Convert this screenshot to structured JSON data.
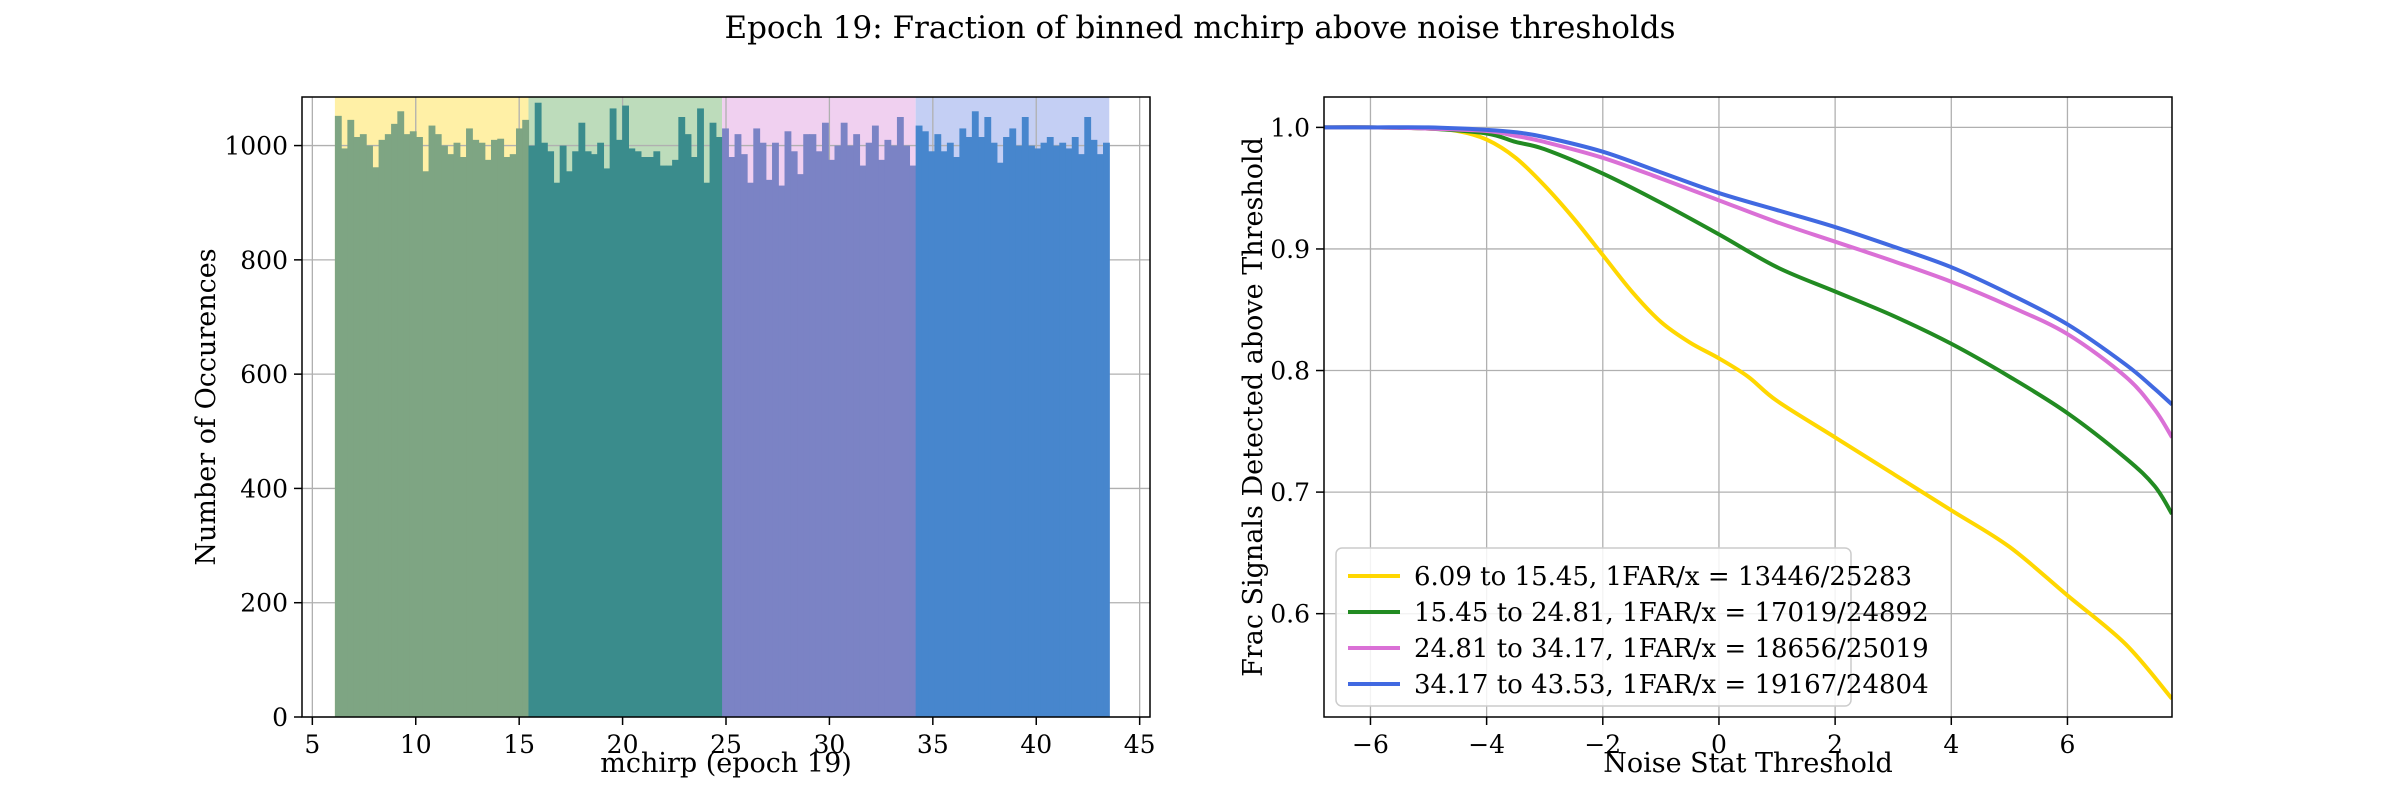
{
  "figure": {
    "title": "Epoch 19: Fraction of binned mchirp above noise thresholds"
  },
  "chart_data": [
    {
      "type": "bar",
      "name": "histogram",
      "xlabel": "mchirp (epoch 19)",
      "ylabel": "Number of Occurences",
      "xlim": [
        4.5,
        45.5
      ],
      "ylim": [
        0,
        1085
      ],
      "xticks": [
        5,
        10,
        15,
        20,
        25,
        30,
        35,
        40,
        45
      ],
      "yticks": [
        0,
        200,
        400,
        600,
        800,
        1000
      ],
      "grid": true,
      "bin_range": [
        6.09,
        43.53
      ],
      "bin_values": [
        1052,
        995,
        1045,
        1015,
        1020,
        1000,
        962,
        1010,
        1020,
        1038,
        1060,
        1020,
        1025,
        1015,
        955,
        1035,
        1020,
        1000,
        985,
        1005,
        980,
        1030,
        1010,
        1005,
        975,
        1010,
        1012,
        980,
        985,
        1030,
        1045,
        1000,
        1075,
        1005,
        990,
        935,
        1000,
        955,
        990,
        1040,
        990,
        985,
        1005,
        960,
        1065,
        1010,
        1070,
        995,
        990,
        980,
        980,
        990,
        965,
        965,
        975,
        1050,
        1020,
        980,
        1065,
        935,
        1040,
        1015,
        1030,
        980,
        1020,
        985,
        935,
        1030,
        1005,
        940,
        1005,
        930,
        1025,
        990,
        950,
        1020,
        1020,
        990,
        1040,
        975,
        1000,
        1040,
        1000,
        1020,
        965,
        1005,
        1035,
        975,
        1010,
        1000,
        1050,
        1000,
        965,
        1035,
        1025,
        990,
        1020,
        990,
        1005,
        980,
        1030,
        1015,
        1060,
        1015,
        1050,
        1005,
        970,
        1015,
        1030,
        1000,
        1050,
        1000,
        995,
        1005,
        1015,
        1000,
        1005,
        995,
        1015,
        985,
        1050,
        1010,
        985,
        1005
      ],
      "bands": [
        {
          "range": [
            6.09,
            15.45
          ],
          "shade": "#fff0a6",
          "bar_color": "#7ea583"
        },
        {
          "range": [
            15.45,
            24.81
          ],
          "shade": "#bddcbb",
          "bar_color": "#3a8c8c"
        },
        {
          "range": [
            24.81,
            34.17
          ],
          "shade": "#f0d0f0",
          "bar_color": "#7b83c5"
        },
        {
          "range": [
            34.17,
            43.53
          ],
          "shade": "#c4cff4",
          "bar_color": "#4786cd"
        }
      ]
    },
    {
      "type": "line",
      "name": "threshold curves",
      "xlabel": "Noise Stat Threshold",
      "ylabel": "Frac Signals Detected above Threshold",
      "xlim": [
        -6.8,
        7.8
      ],
      "ylim": [
        0.515,
        1.025
      ],
      "xticks": [
        -6,
        -4,
        -2,
        0,
        2,
        4,
        6
      ],
      "xtick_labels": [
        "−6",
        "−4",
        "−2",
        "0",
        "2",
        "4",
        "6"
      ],
      "yticks": [
        0.6,
        0.7,
        0.8,
        0.9,
        1.0
      ],
      "ytick_labels": [
        "0.6",
        "0.7",
        "0.8",
        "0.9",
        "1.0"
      ],
      "grid": true,
      "legend_position": "lower-left",
      "series": [
        {
          "name": "6.09 to 15.45, 1FAR/x = 13446/25283",
          "color": "#ffd700",
          "x": [
            -6.8,
            -6,
            -5,
            -4.5,
            -4,
            -3.5,
            -3,
            -2.5,
            -2,
            -1.5,
            -1,
            -0.5,
            0,
            0.5,
            1,
            2,
            3,
            4,
            5,
            6,
            7,
            7.8
          ],
          "y": [
            1.0,
            1.0,
            0.999,
            0.997,
            0.99,
            0.975,
            0.952,
            0.925,
            0.895,
            0.865,
            0.84,
            0.823,
            0.81,
            0.795,
            0.775,
            0.745,
            0.715,
            0.685,
            0.655,
            0.615,
            0.575,
            0.53
          ]
        },
        {
          "name": "15.45 to 24.81, 1FAR/x = 17019/24892",
          "color": "#228b22",
          "x": [
            -6.8,
            -6,
            -5,
            -4,
            -3.5,
            -3,
            -2,
            -1,
            0,
            1,
            2,
            3,
            4,
            5,
            6,
            7,
            7.5,
            7.8
          ],
          "y": [
            1.0,
            1.0,
            0.999,
            0.995,
            0.988,
            0.982,
            0.962,
            0.938,
            0.912,
            0.885,
            0.865,
            0.845,
            0.822,
            0.795,
            0.765,
            0.728,
            0.705,
            0.682
          ]
        },
        {
          "name": "24.81 to 34.17, 1FAR/x = 18656/25019",
          "color": "#da70d6",
          "x": [
            -6.8,
            -6,
            -5,
            -4,
            -3.5,
            -3,
            -2,
            -1,
            0,
            1,
            2,
            3,
            4,
            5,
            6,
            7,
            7.5,
            7.8
          ],
          "y": [
            1.0,
            1.0,
            0.999,
            0.997,
            0.993,
            0.988,
            0.975,
            0.958,
            0.94,
            0.922,
            0.906,
            0.89,
            0.873,
            0.853,
            0.83,
            0.795,
            0.768,
            0.745
          ]
        },
        {
          "name": "34.17 to 43.53, 1FAR/x = 19167/24804",
          "color": "#4169e1",
          "x": [
            -6.8,
            -6,
            -5,
            -4,
            -3.5,
            -3,
            -2,
            -1,
            0,
            1,
            2,
            3,
            4,
            5,
            6,
            7,
            7.5,
            7.8
          ],
          "y": [
            1.0,
            1.0,
            1.0,
            0.998,
            0.996,
            0.992,
            0.98,
            0.963,
            0.946,
            0.932,
            0.918,
            0.902,
            0.885,
            0.863,
            0.838,
            0.805,
            0.785,
            0.772
          ]
        }
      ]
    }
  ]
}
